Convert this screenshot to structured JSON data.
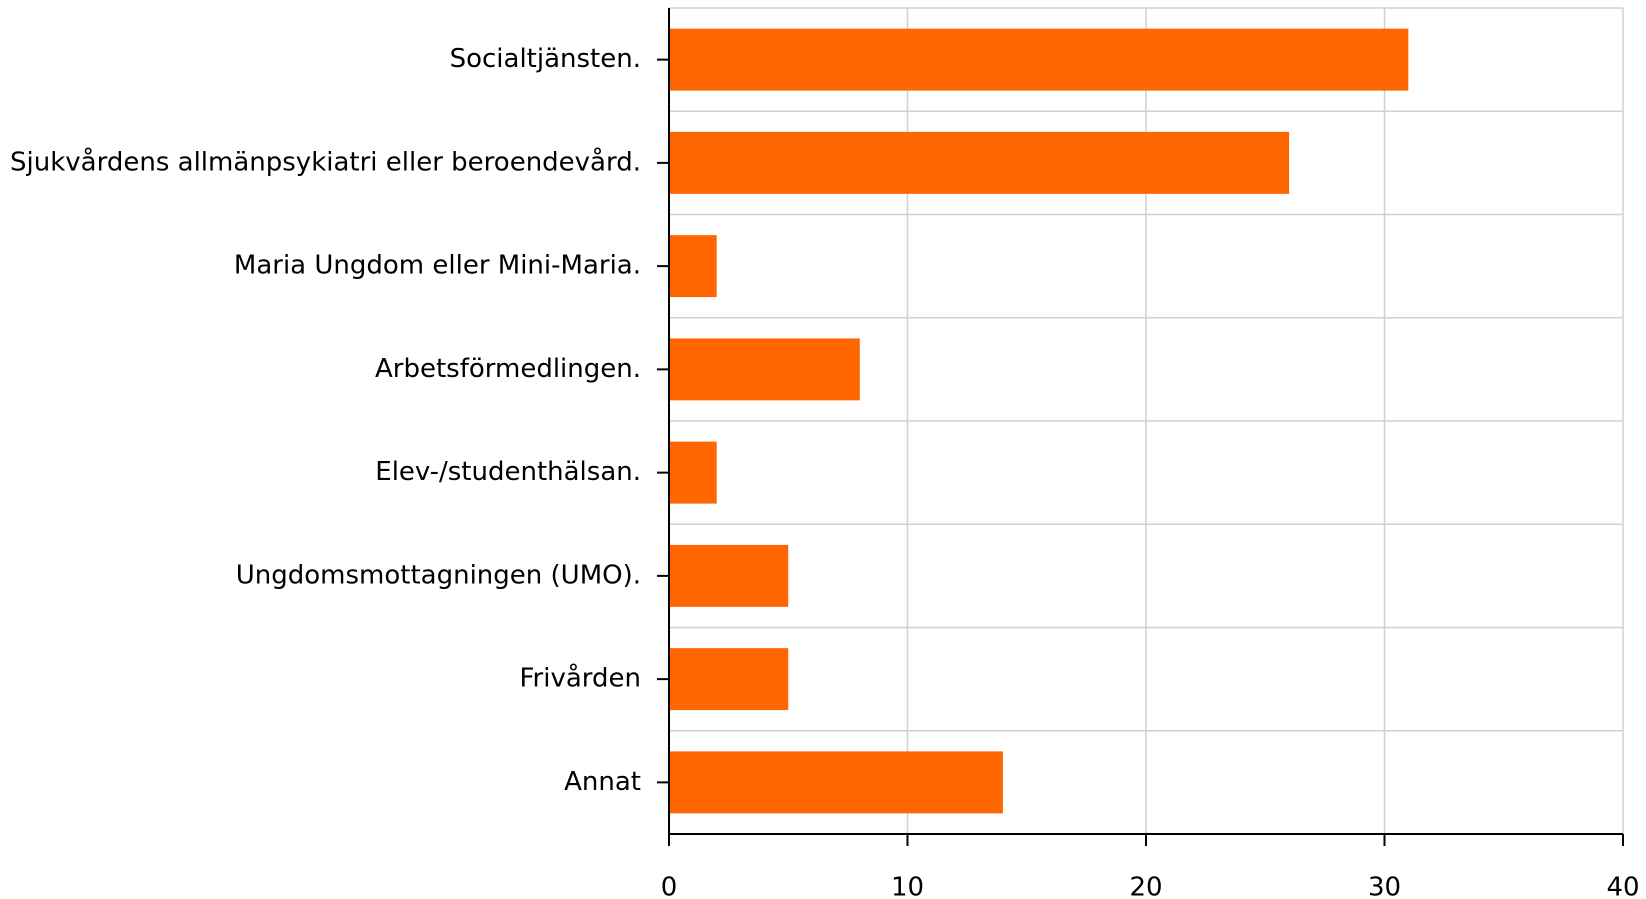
{
  "chart_data": {
    "type": "bar",
    "orientation": "horizontal",
    "categories": [
      "Socialtjänsten.",
      "Sjukvårdens allmänpsykiatri eller beroendevård.",
      "Maria Ungdom eller Mini-Maria.",
      "Arbetsförmedlingen.",
      "Elev-/studenthälsan.",
      "Ungdomsmottagningen (UMO).",
      "Frivården",
      "Annat"
    ],
    "values": [
      31,
      26,
      2,
      8,
      2,
      5,
      5,
      14
    ],
    "color": "#ff6600",
    "xlim": [
      0,
      40
    ],
    "xticks": [
      0,
      10,
      20,
      30,
      40
    ],
    "grid": true
  }
}
